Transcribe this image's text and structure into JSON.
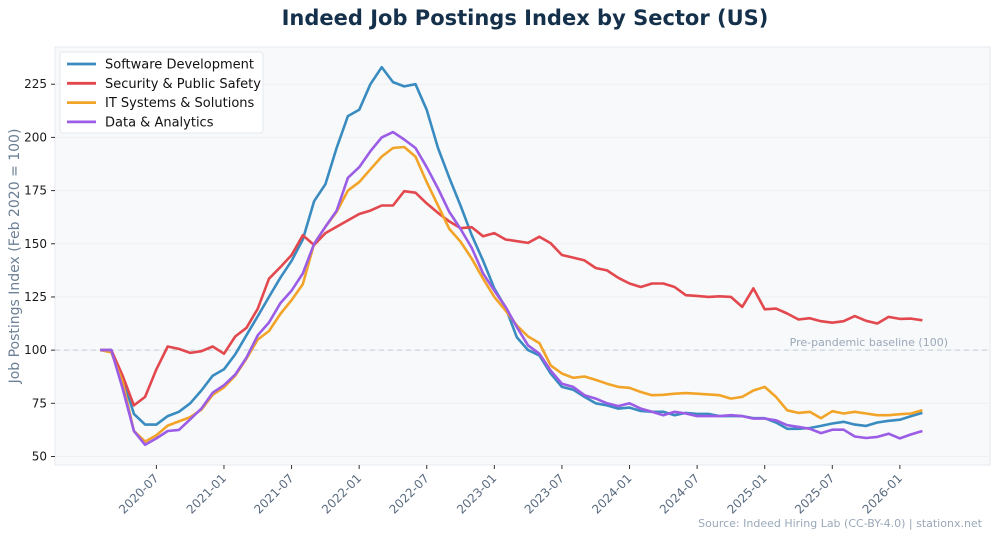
{
  "chart_data": {
    "type": "line",
    "title": "Indeed Job Postings Index by Sector (US)",
    "xlabel": "",
    "ylabel": "Job Postings Index (Feb 2020 = 100)",
    "ylim": [
      46,
      242.5
    ],
    "xlim": [
      "2019-10",
      "2026-09"
    ],
    "yticks": [
      50,
      75,
      100,
      125,
      150,
      175,
      200,
      225
    ],
    "xticks": [
      "2020-07",
      "2021-01",
      "2021-07",
      "2022-01",
      "2022-07",
      "2023-01",
      "2023-07",
      "2024-01",
      "2024-07",
      "2025-01",
      "2025-07",
      "2026-01"
    ],
    "grid": "horizontal",
    "legend_position": "top-left",
    "x": [
      "2020-02",
      "2020-03",
      "2020-04",
      "2020-05",
      "2020-06",
      "2020-07",
      "2020-08",
      "2020-09",
      "2020-10",
      "2020-11",
      "2020-12",
      "2021-01",
      "2021-02",
      "2021-03",
      "2021-04",
      "2021-05",
      "2021-06",
      "2021-07",
      "2021-08",
      "2021-09",
      "2021-10",
      "2021-11",
      "2021-12",
      "2022-01",
      "2022-02",
      "2022-03",
      "2022-04",
      "2022-05",
      "2022-06",
      "2022-07",
      "2022-08",
      "2022-09",
      "2022-10",
      "2022-11",
      "2022-12",
      "2023-01",
      "2023-02",
      "2023-03",
      "2023-04",
      "2023-05",
      "2023-06",
      "2023-07",
      "2023-08",
      "2023-09",
      "2023-10",
      "2023-11",
      "2023-12",
      "2024-01",
      "2024-02",
      "2024-03",
      "2024-04",
      "2024-05",
      "2024-06",
      "2024-07",
      "2024-08",
      "2024-09",
      "2024-10",
      "2024-11",
      "2024-12",
      "2025-01",
      "2025-02",
      "2025-03",
      "2025-04",
      "2025-05",
      "2025-06",
      "2025-07",
      "2025-08",
      "2025-09",
      "2025-10",
      "2025-11",
      "2025-12",
      "2026-01",
      "2026-02",
      "2026-03"
    ],
    "series": [
      {
        "name": "Software Development",
        "color": "#3a8cc0",
        "values": [
          100,
          100,
          87,
          70,
          65,
          65,
          69,
          71,
          75,
          81,
          88,
          91,
          98,
          107,
          116,
          125,
          134,
          142,
          152,
          170,
          178,
          195,
          210,
          213,
          225,
          233,
          226,
          224,
          225,
          213,
          195,
          181,
          168,
          154,
          142,
          129,
          120,
          106,
          100,
          97.5,
          89,
          82.7,
          81.4,
          78,
          75,
          74,
          72.5,
          73,
          71.4,
          71,
          71,
          69.4,
          70.5,
          70,
          70,
          69,
          69,
          69,
          68,
          68,
          66,
          63,
          63,
          63.4,
          64.4,
          65.5,
          66.3,
          65,
          64.4,
          66,
          66.8,
          67.3,
          69,
          70.5
        ]
      },
      {
        "name": "Security & Public Safety",
        "color": "#e2484d",
        "values": [
          100,
          100,
          88,
          74,
          78,
          91,
          101.7,
          100.6,
          98.7,
          99.5,
          101.7,
          98.3,
          106.4,
          110.5,
          119.5,
          133.6,
          139,
          144.7,
          154,
          149.4,
          155,
          158,
          161,
          164,
          165.6,
          168,
          168,
          174.7,
          174,
          169,
          164.5,
          160.5,
          157.3,
          157.8,
          153.5,
          155,
          152,
          151.2,
          150.4,
          153.3,
          150.2,
          144.7,
          143.5,
          142.2,
          138.6,
          137.5,
          134,
          131.3,
          129.7,
          131.3,
          131.3,
          129.7,
          125.8,
          125.5,
          125,
          125.3,
          125,
          120.3,
          129,
          119.2,
          119.5,
          117.2,
          114.4,
          115,
          113.6,
          112.9,
          113.6,
          116,
          113.8,
          112.5,
          115.6,
          114.7,
          114.8,
          114
        ]
      },
      {
        "name": "IT Systems & Solutions",
        "color": "#f2a428",
        "values": [
          100,
          99,
          85,
          62,
          57,
          60,
          64.5,
          66.5,
          68.5,
          72,
          79,
          82.5,
          88,
          96,
          105,
          109,
          117,
          123.5,
          131,
          150,
          158,
          165,
          175,
          179,
          185,
          191,
          195,
          195.5,
          191,
          179,
          168,
          157,
          151,
          143,
          133.6,
          125,
          118.6,
          111.6,
          106.4,
          103.3,
          92.8,
          89,
          87,
          87.6,
          86,
          84.2,
          82.7,
          82.3,
          80.3,
          78.8,
          79,
          79.5,
          79.8,
          79.5,
          79.2,
          78.8,
          77.2,
          78,
          81,
          82.7,
          78,
          71.7,
          70.5,
          71,
          68,
          71.3,
          70.2,
          71,
          70.2,
          69.4,
          69.4,
          69.9,
          70.2,
          71.7
        ]
      },
      {
        "name": "Data & Analytics",
        "color": "#9b5ce6",
        "values": [
          100,
          100,
          82,
          62,
          55.5,
          58.5,
          62,
          62.5,
          67.5,
          72.5,
          80,
          83.5,
          88.5,
          96.5,
          107,
          113,
          122,
          128,
          136,
          150,
          158,
          165.5,
          181,
          186,
          193.5,
          200,
          202.5,
          199,
          195,
          186,
          176,
          165,
          157,
          148,
          136,
          128,
          120.3,
          110.8,
          102.2,
          98.3,
          90.4,
          84.2,
          82.7,
          78.8,
          77.2,
          75,
          73.7,
          75,
          72.5,
          71,
          69.4,
          71,
          70.2,
          69,
          69,
          69,
          69.4,
          69,
          67.8,
          67.8,
          67,
          64.7,
          63.9,
          63,
          61,
          62.6,
          62.6,
          59.4,
          58.7,
          59.2,
          60.7,
          58.5,
          60.4,
          62
        ]
      }
    ],
    "annotations": [
      {
        "type": "hline",
        "y": 100,
        "label": "Pre-pandemic baseline (100)"
      }
    ],
    "source": "Source: Indeed Hiring Lab (CC-BY-4.0) | stationx.net"
  }
}
